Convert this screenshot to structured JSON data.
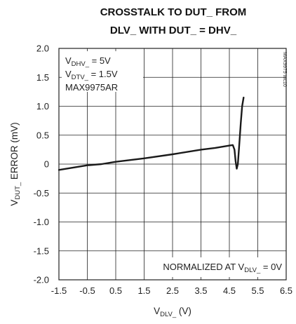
{
  "chart_data": {
    "type": "line",
    "title_lines": [
      "CROSSTALK TO DUT_ FROM",
      "DLV_ WITH DUT_ = DHV_"
    ],
    "xlabel": {
      "main": "V",
      "sub": "DLV_",
      "suffix": " (V)"
    },
    "ylabel": {
      "main": "V",
      "sub": "DUT_",
      "suffix": " ERROR (mV)"
    },
    "xlim": [
      -1.5,
      6.5
    ],
    "ylim": [
      -2.0,
      2.0
    ],
    "x_ticks": [
      "-1.5",
      "-0.5",
      "0.5",
      "1.5",
      "2.5",
      "3.5",
      "4.5",
      "5.5",
      "6.5"
    ],
    "y_ticks": [
      "2.0",
      "1.5",
      "1.0",
      "0.5",
      "0",
      "-0.5",
      "-1.0",
      "-1.5",
      "-2.0"
    ],
    "grid": true,
    "annotations": {
      "conditions": [
        {
          "main": "V",
          "sub": "DHV_",
          "suffix": " = 5V"
        },
        {
          "main": "V",
          "sub": "DTV_",
          "suffix": " = 1.5V"
        },
        {
          "main": "MAX9975AR",
          "sub": "",
          "suffix": ""
        }
      ],
      "normalized": {
        "main": "NORMALIZED AT V",
        "sub": "DLV_",
        "suffix": " = 0V"
      },
      "figure_id": "MAX9975 toc10"
    },
    "series": [
      {
        "x": [
          -1.5,
          -0.5,
          0.0,
          0.5,
          1.5,
          2.5,
          3.5,
          4.0,
          4.5,
          4.62,
          4.68,
          4.72,
          4.76,
          4.8,
          4.85,
          4.9,
          4.95,
          5.0
        ],
        "values": [
          -0.1,
          -0.02,
          0.0,
          0.04,
          0.1,
          0.17,
          0.25,
          0.28,
          0.32,
          0.33,
          0.25,
          0.05,
          -0.08,
          0.0,
          0.35,
          0.7,
          1.0,
          1.15
        ]
      }
    ]
  }
}
